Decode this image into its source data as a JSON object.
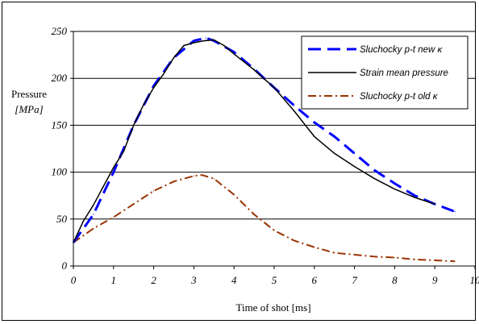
{
  "chart_data": {
    "type": "line",
    "ylabel_line1": "Pressure",
    "ylabel_line2": "[MPa]",
    "xlabel": "Time of shot [ms]",
    "xlim": [
      0,
      10
    ],
    "ylim": [
      0,
      250
    ],
    "x_ticks": [
      "0",
      "1",
      "2",
      "3",
      "4",
      "5",
      "6",
      "7",
      "8",
      "9",
      "10"
    ],
    "y_ticks": [
      "0",
      "50",
      "100",
      "150",
      "200",
      "250"
    ],
    "grid": "horizontal",
    "legend_position": "top-right",
    "series": [
      {
        "name": "Sluchocky p-t new κ",
        "color": "#0000ff",
        "style": "dashed",
        "x": [
          0,
          0.5,
          1,
          1.5,
          2,
          2.5,
          3,
          3.3,
          3.5,
          4,
          4.5,
          5,
          5.5,
          6,
          6.5,
          7,
          7.5,
          8,
          8.5,
          9,
          9.5
        ],
        "y": [
          25,
          55,
          100,
          150,
          192,
          222,
          240,
          243,
          240,
          228,
          210,
          190,
          171,
          153,
          138,
          120,
          102,
          88,
          75,
          66,
          58
        ]
      },
      {
        "name": "Strain mean pressure",
        "color": "#000000",
        "style": "solid",
        "x": [
          0,
          0.25,
          0.5,
          0.75,
          1,
          1.25,
          1.5,
          1.75,
          2,
          2.25,
          2.5,
          2.75,
          3,
          3.25,
          3.5,
          3.75,
          4,
          4.5,
          5,
          5.5,
          6,
          6.5,
          7,
          7.5,
          8,
          8.5,
          9
        ],
        "y": [
          25,
          48,
          65,
          85,
          105,
          122,
          150,
          172,
          190,
          205,
          222,
          235,
          238,
          240,
          241,
          235,
          226,
          209,
          190,
          165,
          138,
          120,
          106,
          93,
          82,
          73,
          66
        ]
      },
      {
        "name": "Sluchocky p-t old κ",
        "color": "#993300",
        "style": "dash-dot",
        "x": [
          0,
          0.5,
          1,
          1.5,
          2,
          2.5,
          3,
          3.2,
          3.5,
          4,
          4.5,
          5,
          5.5,
          6,
          6.5,
          7,
          7.5,
          8,
          8.5,
          9,
          9.5
        ],
        "y": [
          25,
          40,
          52,
          66,
          80,
          90,
          96,
          97,
          93,
          76,
          55,
          38,
          27,
          20,
          14,
          12,
          10,
          9,
          7,
          6,
          5
        ]
      }
    ]
  }
}
